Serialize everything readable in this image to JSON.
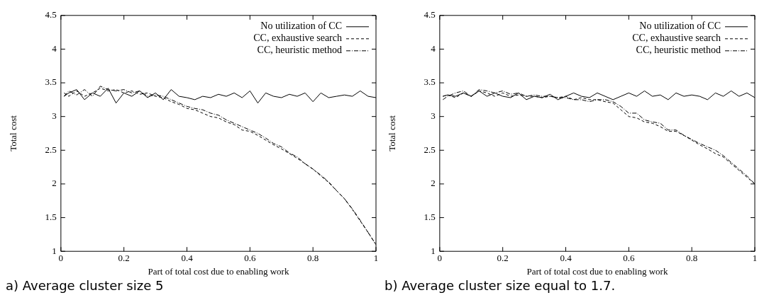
{
  "chart_data": [
    {
      "type": "line",
      "title": "a) Average cluster size 5",
      "xlabel": "Part of total cost due to enabling work",
      "ylabel": "Total cost",
      "x": [
        0.01,
        0.025,
        0.05,
        0.075,
        0.1,
        0.125,
        0.15,
        0.175,
        0.2,
        0.225,
        0.25,
        0.275,
        0.3,
        0.325,
        0.35,
        0.375,
        0.4,
        0.425,
        0.45,
        0.475,
        0.5,
        0.525,
        0.55,
        0.575,
        0.6,
        0.625,
        0.65,
        0.675,
        0.7,
        0.725,
        0.75,
        0.775,
        0.8,
        0.825,
        0.85,
        0.875,
        0.9,
        0.925,
        0.95,
        0.975,
        1.0
      ],
      "series": [
        {
          "name": "No utilization of CC",
          "color": "#000000",
          "line_style": "solid",
          "values": [
            3.3,
            3.35,
            3.4,
            3.25,
            3.35,
            3.3,
            3.42,
            3.2,
            3.35,
            3.3,
            3.38,
            3.28,
            3.35,
            3.25,
            3.4,
            3.3,
            3.28,
            3.25,
            3.3,
            3.28,
            3.33,
            3.3,
            3.35,
            3.28,
            3.38,
            3.2,
            3.35,
            3.3,
            3.28,
            3.33,
            3.3,
            3.35,
            3.22,
            3.35,
            3.28,
            3.3,
            3.32,
            3.3,
            3.38,
            3.3,
            3.28
          ]
        },
        {
          "name": "CC, exhaustive search",
          "color": "#000000",
          "line_style": "dashed",
          "values": [
            3.35,
            3.3,
            3.38,
            3.3,
            3.35,
            3.42,
            3.38,
            3.4,
            3.35,
            3.38,
            3.33,
            3.35,
            3.3,
            3.28,
            3.22,
            3.18,
            3.12,
            3.1,
            3.05,
            3.0,
            2.98,
            2.92,
            2.88,
            2.8,
            2.78,
            2.72,
            2.65,
            2.58,
            2.52,
            2.45,
            2.38,
            2.3,
            2.22,
            2.12,
            2.02,
            1.9,
            1.78,
            1.62,
            1.45,
            1.28,
            1.1
          ]
        },
        {
          "name": "CC, heuristic method",
          "color": "#000000",
          "line_style": "dotted",
          "values": [
            3.3,
            3.38,
            3.32,
            3.4,
            3.3,
            3.45,
            3.4,
            3.38,
            3.4,
            3.35,
            3.38,
            3.3,
            3.32,
            3.3,
            3.25,
            3.2,
            3.15,
            3.12,
            3.1,
            3.05,
            3.02,
            2.95,
            2.9,
            2.85,
            2.8,
            2.75,
            2.68,
            2.6,
            2.55,
            2.46,
            2.4,
            2.3,
            2.22,
            2.13,
            2.03,
            1.9,
            1.78,
            1.63,
            1.46,
            1.28,
            1.1
          ]
        }
      ],
      "xlim": [
        0,
        1
      ],
      "xticks": [
        0,
        0.2,
        0.4,
        0.6,
        0.8,
        1
      ],
      "ylim": [
        1,
        4.5
      ],
      "yticks": [
        1,
        1.5,
        2,
        2.5,
        3,
        3.5,
        4,
        4.5
      ],
      "legend": "top right",
      "grid": false,
      "marker": "none"
    },
    {
      "type": "line",
      "title": "b) Average cluster size equal to 1.7.",
      "xlabel": "Part of total cost due to enabling work",
      "ylabel": "Total cost",
      "x": [
        0.01,
        0.025,
        0.05,
        0.075,
        0.1,
        0.125,
        0.15,
        0.175,
        0.2,
        0.225,
        0.25,
        0.275,
        0.3,
        0.325,
        0.35,
        0.375,
        0.4,
        0.425,
        0.45,
        0.475,
        0.5,
        0.525,
        0.55,
        0.575,
        0.6,
        0.625,
        0.65,
        0.675,
        0.7,
        0.725,
        0.75,
        0.775,
        0.8,
        0.825,
        0.85,
        0.875,
        0.9,
        0.925,
        0.95,
        0.975,
        1.0
      ],
      "series": [
        {
          "name": "No utilization of CC",
          "color": "#000000",
          "line_style": "solid",
          "values": [
            3.3,
            3.32,
            3.3,
            3.35,
            3.3,
            3.38,
            3.3,
            3.35,
            3.3,
            3.28,
            3.35,
            3.25,
            3.3,
            3.28,
            3.33,
            3.25,
            3.3,
            3.35,
            3.3,
            3.28,
            3.35,
            3.3,
            3.25,
            3.3,
            3.35,
            3.3,
            3.38,
            3.3,
            3.32,
            3.25,
            3.35,
            3.3,
            3.32,
            3.3,
            3.25,
            3.35,
            3.3,
            3.38,
            3.3,
            3.35,
            3.28
          ]
        },
        {
          "name": "CC, exhaustive search",
          "color": "#000000",
          "line_style": "dashed",
          "values": [
            3.3,
            3.32,
            3.28,
            3.35,
            3.3,
            3.38,
            3.35,
            3.3,
            3.35,
            3.3,
            3.32,
            3.3,
            3.3,
            3.28,
            3.3,
            3.28,
            3.3,
            3.25,
            3.28,
            3.25,
            3.25,
            3.22,
            3.2,
            3.1,
            3.0,
            2.98,
            2.92,
            2.9,
            2.85,
            2.78,
            2.78,
            2.72,
            2.65,
            2.58,
            2.52,
            2.45,
            2.4,
            2.3,
            2.2,
            2.1,
            2.0
          ]
        },
        {
          "name": "CC, heuristic method",
          "color": "#000000",
          "line_style": "dotted",
          "values": [
            3.25,
            3.3,
            3.35,
            3.38,
            3.3,
            3.4,
            3.38,
            3.35,
            3.38,
            3.33,
            3.35,
            3.3,
            3.32,
            3.3,
            3.3,
            3.28,
            3.28,
            3.25,
            3.25,
            3.22,
            3.25,
            3.25,
            3.22,
            3.15,
            3.05,
            3.05,
            2.95,
            2.92,
            2.9,
            2.8,
            2.8,
            2.72,
            2.66,
            2.6,
            2.55,
            2.5,
            2.42,
            2.32,
            2.22,
            2.12,
            2.0
          ]
        }
      ],
      "xlim": [
        0,
        1
      ],
      "xticks": [
        0,
        0.2,
        0.4,
        0.6,
        0.8,
        1
      ],
      "ylim": [
        1,
        4.5
      ],
      "yticks": [
        1,
        1.5,
        2,
        2.5,
        3,
        3.5,
        4,
        4.5
      ],
      "legend": "top right",
      "grid": false,
      "marker": "none"
    }
  ]
}
